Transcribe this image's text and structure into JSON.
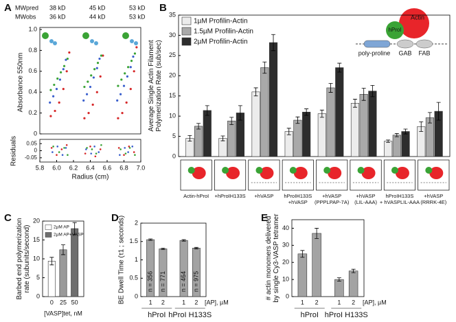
{
  "chart_data": [
    {
      "type": "scatter",
      "label": "A",
      "mw_rows": [
        {
          "label": "MWpred",
          "values": [
            "38 kD",
            "45 kD",
            "53 kD"
          ]
        },
        {
          "label": "MWobs",
          "values": [
            "36 kD",
            "44 kD",
            "53 kD"
          ]
        }
      ],
      "ylabel": "Absorbance 550nm",
      "xlabel": "Radius (cm)",
      "residuals_label": "Residuals",
      "xlim": [
        5.8,
        7.0
      ],
      "xticks": [
        5.8,
        {
          "value": 6,
          "label": "6.0"
        },
        6.2,
        6.4,
        6.6,
        6.8,
        {
          "value": 7,
          "label": "7.0"
        }
      ],
      "ylim": [
        0,
        1
      ],
      "yticks": [
        0,
        0.2,
        0.4,
        0.6,
        0.8,
        {
          "value": 1,
          "label": "1.0"
        }
      ],
      "residuals_ylim": [
        -0.08,
        0.08
      ],
      "residuals_yticks": [
        0.05,
        0,
        -0.05
      ],
      "series": [
        {
          "color": "#d62728",
          "x": [
            5.93,
            5.98,
            6.03,
            6.08,
            6.12,
            6.15,
            6.33,
            6.38,
            6.43,
            6.48,
            6.52,
            6.55,
            6.73,
            6.78,
            6.83,
            6.88,
            6.92,
            6.95
          ],
          "y": [
            0.17,
            0.22,
            0.3,
            0.43,
            0.6,
            0.78,
            0.15,
            0.2,
            0.28,
            0.4,
            0.55,
            0.75,
            0.15,
            0.2,
            0.3,
            0.43,
            0.6,
            0.83
          ]
        },
        {
          "color": "#3a5fcd",
          "x": [
            5.92,
            5.96,
            6.0,
            6.04,
            6.08,
            6.11,
            6.32,
            6.36,
            6.4,
            6.44,
            6.48,
            6.51,
            6.72,
            6.76,
            6.8,
            6.84,
            6.88,
            6.91
          ],
          "y": [
            0.3,
            0.36,
            0.43,
            0.52,
            0.62,
            0.71,
            0.32,
            0.38,
            0.45,
            0.54,
            0.63,
            0.72,
            0.32,
            0.38,
            0.46,
            0.55,
            0.64,
            0.74
          ]
        },
        {
          "color": "#3aa335",
          "x": [
            5.93,
            5.97,
            6.01,
            6.05,
            6.09,
            6.13,
            6.33,
            6.37,
            6.41,
            6.45,
            6.49,
            6.53,
            6.73,
            6.77,
            6.81,
            6.85,
            6.89,
            6.93
          ],
          "y": [
            0.42,
            0.47,
            0.53,
            0.59,
            0.65,
            0.72,
            0.45,
            0.5,
            0.56,
            0.62,
            0.68,
            0.75,
            0.46,
            0.52,
            0.58,
            0.64,
            0.7,
            0.77
          ]
        }
      ],
      "residuals": [
        {
          "color": "#d62728",
          "x": [
            5.94,
            6.0,
            6.06,
            6.12,
            6.34,
            6.4,
            6.46,
            6.52,
            6.74,
            6.8,
            6.86,
            6.92
          ],
          "y": [
            0.02,
            -0.03,
            0.01,
            0.04,
            -0.02,
            0.03,
            -0.04,
            0.01,
            0.02,
            -0.03,
            0.03,
            -0.01
          ]
        },
        {
          "color": "#3a5fcd",
          "x": [
            5.95,
            6.01,
            6.07,
            6.11,
            6.35,
            6.41,
            6.45,
            6.5,
            6.75,
            6.81,
            6.85,
            6.9
          ],
          "y": [
            -0.01,
            0.03,
            -0.03,
            0.02,
            0.01,
            -0.02,
            0.03,
            -0.01,
            -0.03,
            0.02,
            -0.01,
            0.03
          ]
        },
        {
          "color": "#3aa335",
          "x": [
            5.96,
            6.03,
            6.09,
            6.13,
            6.36,
            6.42,
            6.47,
            6.53,
            6.76,
            6.82,
            6.87,
            6.93
          ],
          "y": [
            0.03,
            -0.01,
            0.02,
            -0.03,
            0.02,
            0.01,
            -0.02,
            0.04,
            0.01,
            -0.02,
            0.02,
            -0.03
          ]
        }
      ]
    },
    {
      "type": "bar",
      "label": "B",
      "ylabel": [
        "Average Single Actin Filament",
        "Polymerization Rate (sub/sec)"
      ],
      "ylim": [
        0,
        35
      ],
      "yticks": [
        0,
        5,
        10,
        15,
        20,
        25,
        30,
        35
      ],
      "categories": [
        [
          "Actin-hProI"
        ],
        [
          "+hProIH133S"
        ],
        [
          "+hVASP"
        ],
        [
          "hProIH133S",
          "+hVASP"
        ],
        [
          "+hVASP",
          "(PPPLPAP-7A)"
        ],
        [
          "+hVASP",
          "(LIL-AAA)"
        ],
        [
          "hProIH133S",
          "+ hVASPLIL-AAA"
        ],
        [
          "+hVASP",
          "(RRRK-4E)"
        ]
      ],
      "series": [
        {
          "name": "1µM Profilin-Actin",
          "color": "#ececec",
          "values": [
            4.5,
            4.5,
            16,
            6.2,
            10.6,
            13.2,
            3.8,
            7.4
          ],
          "errors": [
            0.7,
            0.6,
            1.0,
            0.8,
            0.9,
            1.0,
            0.3,
            1.2
          ]
        },
        {
          "name": "1.5µM Profilin-Actin",
          "color": "#a9a9a9",
          "values": [
            7.5,
            8.8,
            22,
            9,
            17,
            15.4,
            5.3,
            9.6
          ],
          "errors": [
            0.7,
            0.9,
            1.4,
            0.8,
            1.1,
            1.5,
            0.4,
            1.3
          ]
        },
        {
          "name": "2µM Profilin-Actin",
          "color": "#2d2d2d",
          "values": [
            11.4,
            10.8,
            28.2,
            11,
            22,
            16.2,
            6.2,
            11.2
          ],
          "errors": [
            1.2,
            1.8,
            2.0,
            0.8,
            1.1,
            1.4,
            0.6,
            2.2
          ]
        }
      ],
      "inset": {
        "hproi": "hProI",
        "actin": "Actin",
        "poly_proline": "poly-proline",
        "gab": "GAB",
        "fab": "FAB"
      }
    },
    {
      "type": "bar",
      "label": "C",
      "ylabel": [
        "Barbed end polymerization",
        "rate (subunits/second)"
      ],
      "xlabel": "[VASP]tet, nM",
      "ylim": [
        0,
        20
      ],
      "yticks": [
        0,
        5,
        10,
        15,
        20
      ],
      "categories": [
        [
          "0"
        ],
        [
          "25"
        ],
        [
          "50"
        ]
      ],
      "series": [
        {
          "colors": [
            "#ffffff",
            "#9a9a9a",
            "#6e6e6e"
          ],
          "values": [
            9.4,
            12.4,
            18
          ],
          "errors": [
            1.0,
            1.3,
            1.6
          ]
        }
      ],
      "legend": [
        {
          "label": "2µM AP",
          "color": "#ffffff"
        },
        {
          "label": "2µM AP+VASP",
          "color": "#6e6e6e"
        }
      ]
    },
    {
      "type": "bar",
      "label": "D",
      "ylabel": [
        "BE Dwell Time (τ1 ; seconds)"
      ],
      "xlabel": "[AP], µM",
      "ylim": [
        0,
        2
      ],
      "yticks": [
        0,
        0.5,
        1,
        1.5,
        2
      ],
      "categories": [
        [
          "1"
        ],
        [
          "2"
        ],
        [
          "1"
        ],
        [
          "2"
        ]
      ],
      "groups": [
        "hProI",
        "hProI H133S"
      ],
      "series": [
        {
          "color": "#a3a3a3",
          "values": [
            1.55,
            1.3,
            1.53,
            1.32
          ],
          "errors": [
            0.02,
            0.02,
            0.02,
            0.02
          ]
        }
      ],
      "bar_labels": [
        "n = 356",
        "n = 771",
        "n = 464",
        "n = 975"
      ]
    },
    {
      "type": "bar",
      "label": "E",
      "ylabel": [
        "# actin monomers delivered",
        "by single Cy3-VASP tetramer"
      ],
      "xlabel": "[AP], µM",
      "ylim": [
        0,
        45
      ],
      "yticks": [
        0,
        10,
        20,
        30,
        40
      ],
      "categories": [
        [
          "1"
        ],
        [
          "2"
        ],
        [
          "1"
        ],
        [
          "2"
        ]
      ],
      "groups": [
        "hProI",
        "hProI H133S"
      ],
      "series": [
        {
          "color": "#a3a3a3",
          "values": [
            25,
            37,
            10,
            15
          ],
          "errors": [
            2,
            3,
            1,
            1
          ]
        }
      ]
    }
  ]
}
